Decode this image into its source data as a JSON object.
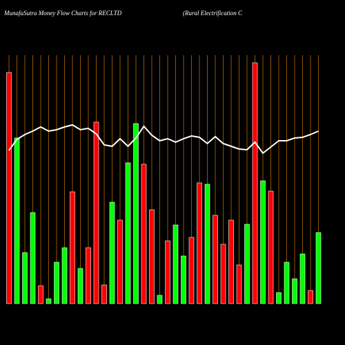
{
  "chart_data": {
    "type": "bar",
    "title": "MunafaSutra  Money Flow  Charts for RECLTD",
    "subtitle": "(Rural Electrification  C",
    "ylim": [
      0,
      360
    ],
    "grid_color": "#b86a00",
    "bars": {
      "values": [
        335,
        240,
        74,
        132,
        26,
        7,
        60,
        81,
        162,
        51,
        81,
        263,
        27,
        147,
        121,
        204,
        261,
        202,
        136,
        12,
        91,
        114,
        69,
        96,
        175,
        173,
        128,
        86,
        121,
        56,
        115,
        349,
        178,
        163,
        16,
        60,
        36,
        72,
        19,
        103
      ],
      "colors": [
        "#ff0000",
        "#00ff00",
        "#00ff00",
        "#00ff00",
        "#ff0000",
        "#00ff00",
        "#00ff00",
        "#00ff00",
        "#ff0000",
        "#00ff00",
        "#ff0000",
        "#ff0000",
        "#ff0000",
        "#00ff00",
        "#ff0000",
        "#00ff00",
        "#00ff00",
        "#ff0000",
        "#ff0000",
        "#00ff00",
        "#ff0000",
        "#00ff00",
        "#00ff00",
        "#ff0000",
        "#ff0000",
        "#00ff00",
        "#ff0000",
        "#ff0000",
        "#ff0000",
        "#ff0000",
        "#00ff00",
        "#ff0000",
        "#00ff00",
        "#ff0000",
        "#00ff00",
        "#00ff00",
        "#00ff00",
        "#00ff00",
        "#ff0000",
        "#00ff00"
      ]
    },
    "line": {
      "color": "#ffffff",
      "values": [
        222,
        238,
        245,
        250,
        256,
        250,
        252,
        256,
        259,
        252,
        254,
        246,
        230,
        228,
        239,
        228,
        240,
        257,
        244,
        236,
        239,
        234,
        239,
        243,
        241,
        232,
        242,
        232,
        228,
        224,
        223,
        234,
        218,
        227,
        236,
        236,
        240,
        241,
        245,
        250
      ]
    }
  }
}
